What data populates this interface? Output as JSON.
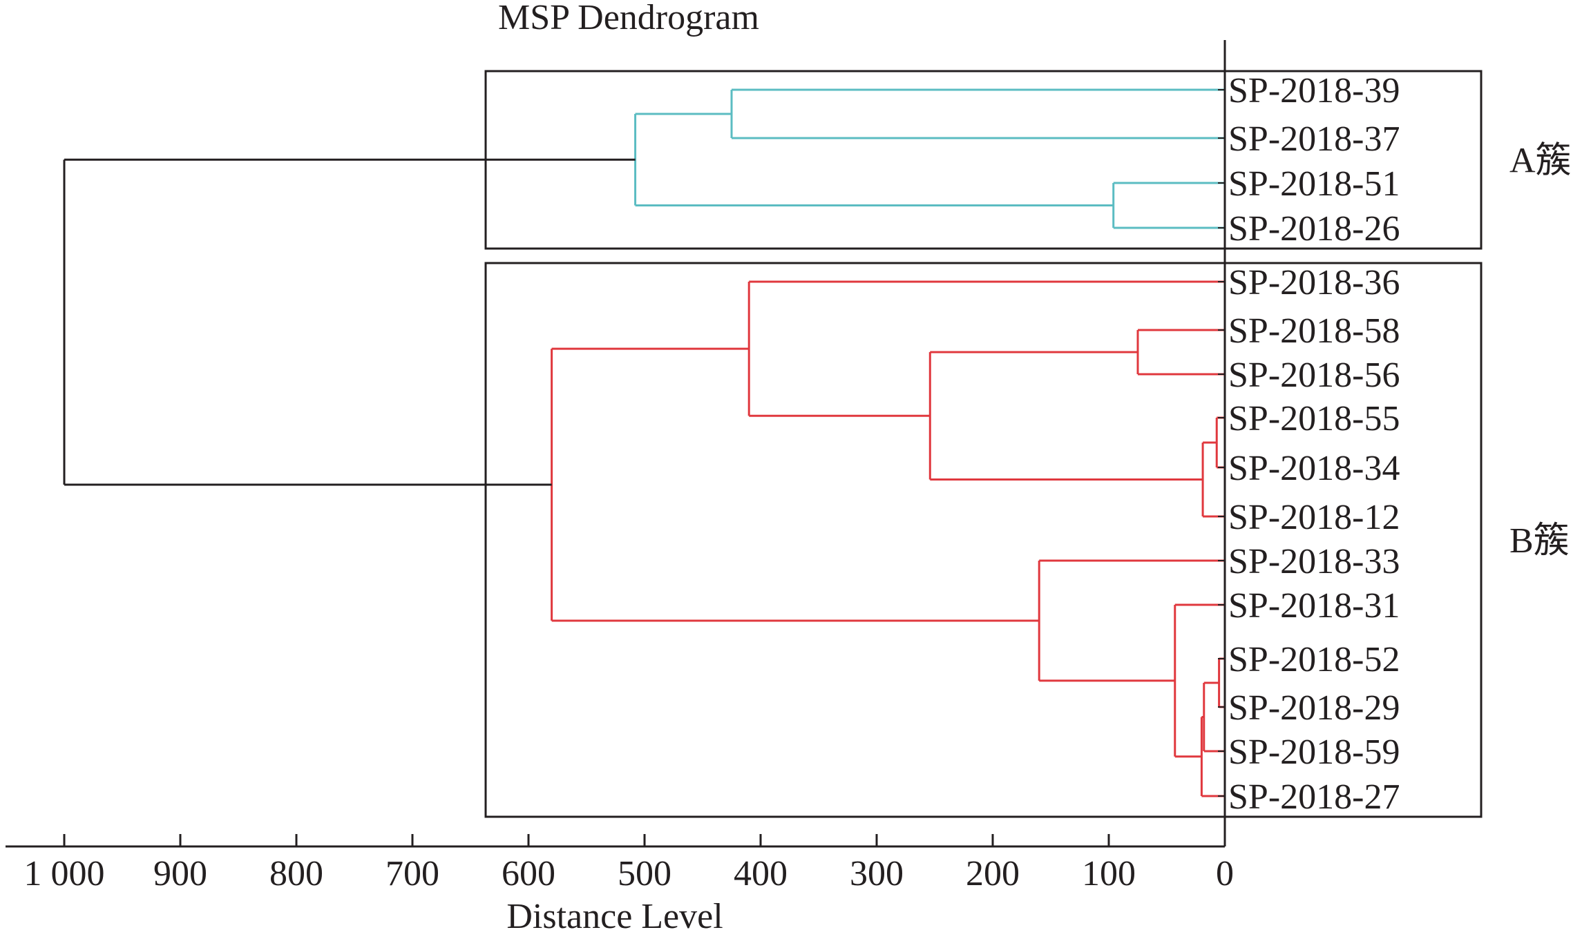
{
  "chart_data": {
    "type": "dendrogram",
    "title": "MSP Dendrogram",
    "xlabel": "Distance Level",
    "xlim": [
      1000,
      0
    ],
    "x_ticks": [
      1000,
      900,
      800,
      700,
      600,
      500,
      400,
      300,
      200,
      100,
      0
    ],
    "x_tick_labels": [
      "1 000",
      "900",
      "800",
      "700",
      "600",
      "500",
      "400",
      "300",
      "200",
      "100",
      "0"
    ],
    "leaves": [
      "SP-2018-39",
      "SP-2018-37",
      "SP-2018-51",
      "SP-2018-26",
      "SP-2018-36",
      "SP-2018-58",
      "SP-2018-56",
      "SP-2018-55",
      "SP-2018-34",
      "SP-2018-12",
      "SP-2018-33",
      "SP-2018-31",
      "SP-2018-52",
      "SP-2018-29",
      "SP-2018-59",
      "SP-2018-27"
    ],
    "colors": {
      "cluster_A": "#5bbcc2",
      "cluster_B": "#e0383e",
      "root": "#231f20",
      "box": "#231f20"
    },
    "merges": [
      {
        "id": "m1",
        "children": [
          "SP-2018-39",
          "SP-2018-37"
        ],
        "distance": 425,
        "color": "cluster_A"
      },
      {
        "id": "m2",
        "children": [
          "SP-2018-51",
          "SP-2018-26"
        ],
        "distance": 96,
        "color": "cluster_A"
      },
      {
        "id": "A",
        "children": [
          "m1",
          "m2"
        ],
        "distance": 508,
        "color": "cluster_A"
      },
      {
        "id": "m3",
        "children": [
          "SP-2018-58",
          "SP-2018-56"
        ],
        "distance": 75,
        "color": "cluster_B"
      },
      {
        "id": "m4",
        "children": [
          "SP-2018-55",
          "SP-2018-34"
        ],
        "distance": 7,
        "color": "cluster_B"
      },
      {
        "id": "m5",
        "children": [
          "m4",
          "SP-2018-12"
        ],
        "distance": 19,
        "color": "cluster_B"
      },
      {
        "id": "m6",
        "children": [
          "m3",
          "m5"
        ],
        "distance": 254,
        "color": "cluster_B"
      },
      {
        "id": "m7",
        "children": [
          "SP-2018-36",
          "m6"
        ],
        "distance": 410,
        "color": "cluster_B"
      },
      {
        "id": "m8",
        "children": [
          "SP-2018-52",
          "SP-2018-29"
        ],
        "distance": 5,
        "color": "cluster_B"
      },
      {
        "id": "m9",
        "children": [
          "m8",
          "SP-2018-59"
        ],
        "distance": 18,
        "color": "cluster_B"
      },
      {
        "id": "m10",
        "children": [
          "m9",
          "SP-2018-27"
        ],
        "distance": 20,
        "color": "cluster_B"
      },
      {
        "id": "m11",
        "children": [
          "SP-2018-31",
          "m10"
        ],
        "distance": 43,
        "color": "cluster_B"
      },
      {
        "id": "m12",
        "children": [
          "SP-2018-33",
          "m11"
        ],
        "distance": 160,
        "color": "cluster_B"
      },
      {
        "id": "B",
        "children": [
          "m7",
          "m12"
        ],
        "distance": 580,
        "color": "cluster_B"
      },
      {
        "id": "root",
        "children": [
          "A",
          "B"
        ],
        "distance": 1000,
        "color": "root"
      }
    ],
    "clusters": [
      {
        "label": "A簇",
        "members": [
          "SP-2018-39",
          "SP-2018-37",
          "SP-2018-51",
          "SP-2018-26"
        ]
      },
      {
        "label": "B簇",
        "members": [
          "SP-2018-36",
          "SP-2018-58",
          "SP-2018-56",
          "SP-2018-55",
          "SP-2018-34",
          "SP-2018-12",
          "SP-2018-33",
          "SP-2018-31",
          "SP-2018-52",
          "SP-2018-29",
          "SP-2018-59",
          "SP-2018-27"
        ]
      }
    ]
  }
}
